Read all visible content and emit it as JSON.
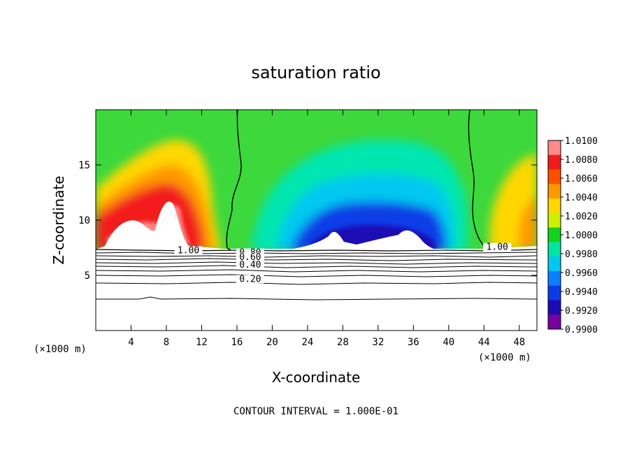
{
  "chart_data": {
    "type": "heatmap",
    "title": "saturation ratio",
    "xlabel": "X-coordinate",
    "ylabel": "Z-coordinate",
    "x_unit_left": "(×1000 m)",
    "x_unit_right": "(×1000 m)",
    "xlim": [
      0,
      50
    ],
    "ylim": [
      0,
      20
    ],
    "x_ticks": [
      4,
      8,
      12,
      16,
      20,
      24,
      28,
      32,
      36,
      40,
      44,
      48
    ],
    "y_ticks": [
      5,
      10,
      15
    ],
    "colorbar": {
      "labels": [
        "1.0100",
        "1.0080",
        "1.0060",
        "1.0040",
        "1.0020",
        "1.0000",
        "0.9980",
        "0.9960",
        "0.9940",
        "0.9920",
        "0.9900"
      ],
      "colors": [
        "#ff8a8a",
        "#f21c1c",
        "#ff5000",
        "#ff9900",
        "#ffd700",
        "#ccf000",
        "#14d21e",
        "#00e6a0",
        "#00c8f0",
        "#0a80ff",
        "#0a3ce6",
        "#1e0ab4",
        "#7800a0"
      ]
    },
    "contour_labels": [
      {
        "text": "1.00",
        "x": 10.5,
        "y": 7.0
      },
      {
        "text": "0.80",
        "x": 17.5,
        "y": 6.8
      },
      {
        "text": "0.60",
        "x": 17.5,
        "y": 6.4
      },
      {
        "text": "0.40",
        "x": 17.5,
        "y": 5.7
      },
      {
        "text": "0.20",
        "x": 17.5,
        "y": 4.4
      },
      {
        "text": "1.00",
        "x": 45.5,
        "y": 7.3
      }
    ],
    "contour_interval": "CONTOUR INTERVAL = 1.000E-01"
  }
}
